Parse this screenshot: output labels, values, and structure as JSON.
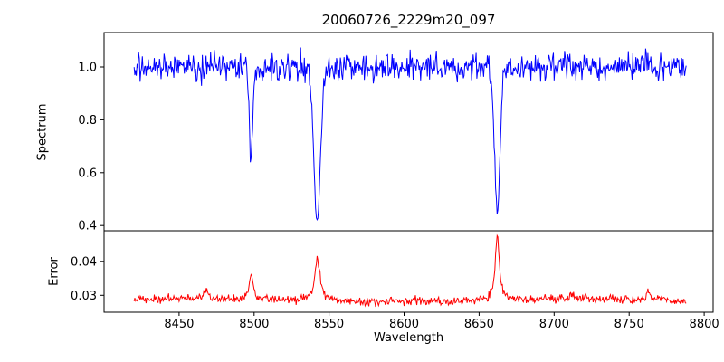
{
  "chart_data": {
    "type": "line",
    "title": "20060726_2229m20_097",
    "xlabel": "Wavelength",
    "xlim": [
      8400,
      8806
    ],
    "x_data_range": [
      8420,
      8788
    ],
    "x_ticks": [
      8450,
      8500,
      8550,
      8600,
      8650,
      8700,
      8750,
      8800
    ],
    "legend": "none",
    "grid": false,
    "panels": [
      {
        "name": "spectrum",
        "ylabel": "Spectrum",
        "line_color": "#0000ff",
        "ylim": [
          0.38,
          1.13
        ],
        "yticks": [
          0.4,
          0.6,
          0.8,
          1.0
        ],
        "ytick_labels": [
          "0.4",
          "0.6",
          "0.8",
          "1.0"
        ],
        "continuum": 1.0,
        "noise_sigma": 0.027,
        "absorption_lines": [
          {
            "center": 8498.0,
            "depth": 0.36,
            "sigma": 1.1
          },
          {
            "center": 8542.1,
            "depth": 0.59,
            "sigma": 2.2
          },
          {
            "center": 8662.1,
            "depth": 0.555,
            "sigma": 1.8
          }
        ]
      },
      {
        "name": "error",
        "ylabel": "Error",
        "line_color": "#ff0000",
        "ylim": [
          0.025,
          0.049
        ],
        "yticks": [
          0.03,
          0.04
        ],
        "ytick_labels": [
          "0.03",
          "0.04"
        ],
        "baseline": 0.0285,
        "noise_sigma": 0.0006,
        "peaks": [
          {
            "center": 8468.0,
            "height": 0.0025,
            "width": 2.0
          },
          {
            "center": 8498.0,
            "height": 0.008,
            "width": 1.4
          },
          {
            "center": 8542.1,
            "height": 0.012,
            "width": 2.2
          },
          {
            "center": 8662.1,
            "height": 0.019,
            "width": 1.6
          },
          {
            "center": 8712.0,
            "height": 0.001,
            "width": 3.0
          },
          {
            "center": 8763.0,
            "height": 0.0018,
            "width": 1.6
          }
        ]
      }
    ]
  }
}
